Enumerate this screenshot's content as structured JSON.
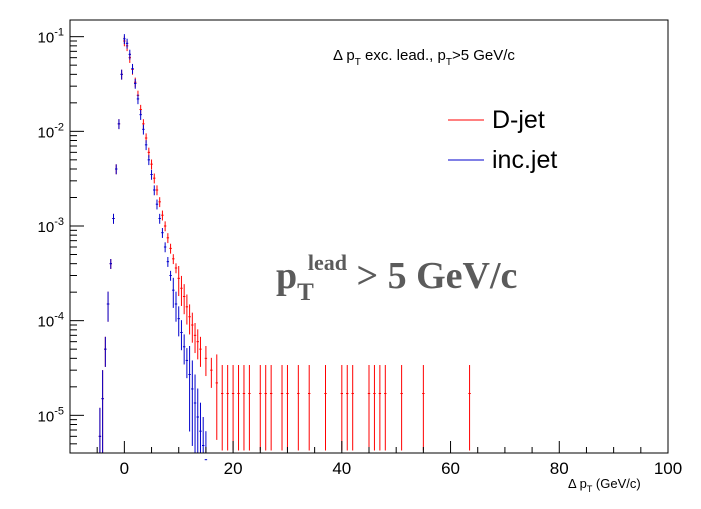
{
  "chart_data": {
    "type": "scatter",
    "title": "",
    "xlabel": "Δ p_T (GeV/c)",
    "ylabel": "",
    "xlim": [
      -10,
      100
    ],
    "ylim": [
      4e-06,
      0.15
    ],
    "yscale": "log",
    "grid": false,
    "legend_placement": "top-right",
    "x_ticks": [
      0,
      20,
      40,
      60,
      80,
      100
    ],
    "x_tick_labels": [
      "0",
      "20",
      "40",
      "60",
      "80",
      "100"
    ],
    "y_ticks": [
      0.1,
      0.01,
      0.001,
      0.0001,
      1e-05
    ],
    "y_tick_labels": [
      {
        "base": "10",
        "exp": "-1"
      },
      {
        "base": "10",
        "exp": "-2"
      },
      {
        "base": "10",
        "exp": "-3"
      },
      {
        "base": "10",
        "exp": "-4"
      },
      {
        "base": "10",
        "exp": "-5"
      }
    ],
    "annotations": {
      "header": {
        "pre": "Δ p",
        "sub": "T",
        "mid": " exc. lead., p",
        "sub2": "T",
        "post": ">5 GeV/c"
      },
      "cut": {
        "p": "p",
        "sub": "T",
        "sup": "lead",
        "rest": " > 5 GeV/c"
      },
      "axis_title": {
        "pre": "Δ p",
        "sub": "T",
        "post": " (GeV/c)"
      }
    },
    "series": [
      {
        "name": "D-jet",
        "color": "#ff0000",
        "points": [
          [
            -4.5,
            6e-06
          ],
          [
            -4.0,
            1.5e-05
          ],
          [
            -3.5,
            5e-05
          ],
          [
            -3.0,
            0.00015
          ],
          [
            -2.5,
            0.0004
          ],
          [
            -2.0,
            0.0012
          ],
          [
            -1.5,
            0.004
          ],
          [
            -1.0,
            0.012
          ],
          [
            -0.5,
            0.04
          ],
          [
            0.0,
            0.09
          ],
          [
            0.5,
            0.08
          ],
          [
            1.0,
            0.06
          ],
          [
            1.5,
            0.045
          ],
          [
            2.0,
            0.033
          ],
          [
            2.5,
            0.024
          ],
          [
            3.0,
            0.017
          ],
          [
            3.5,
            0.012
          ],
          [
            4.0,
            0.0085
          ],
          [
            4.5,
            0.006
          ],
          [
            5.0,
            0.0045
          ],
          [
            5.5,
            0.0032
          ],
          [
            6.0,
            0.0024
          ],
          [
            6.5,
            0.0018
          ],
          [
            7.0,
            0.0013
          ],
          [
            7.5,
            0.001
          ],
          [
            8.0,
            0.00075
          ],
          [
            8.5,
            0.00058
          ],
          [
            9.0,
            0.00045
          ],
          [
            9.5,
            0.00036
          ],
          [
            10.0,
            0.00028
          ],
          [
            10.5,
            0.00022
          ],
          [
            11.0,
            0.00018
          ],
          [
            11.5,
            0.00014
          ],
          [
            12.0,
            0.00011
          ],
          [
            12.5,
            9e-05
          ],
          [
            13.0,
            7e-05
          ],
          [
            13.5,
            6e-05
          ],
          [
            14.0,
            5e-05
          ],
          [
            15.0,
            4e-05
          ],
          [
            16.0,
            3e-05
          ],
          [
            17.0,
            2.2e-05
          ],
          [
            18.0,
            1.7e-05
          ],
          [
            19.0,
            1.7e-05
          ],
          [
            20.0,
            1.7e-05
          ],
          [
            21.0,
            1.7e-05
          ],
          [
            22.0,
            1.7e-05
          ],
          [
            23.0,
            1.7e-05
          ],
          [
            25.0,
            1.7e-05
          ],
          [
            26.0,
            1.7e-05
          ],
          [
            27.0,
            1.7e-05
          ],
          [
            29.0,
            1.7e-05
          ],
          [
            30.0,
            1.7e-05
          ],
          [
            32.0,
            1.7e-05
          ],
          [
            34.0,
            1.7e-05
          ],
          [
            37.0,
            1.7e-05
          ],
          [
            40.0,
            1.7e-05
          ],
          [
            41.0,
            1.7e-05
          ],
          [
            42.0,
            1.7e-05
          ],
          [
            45.0,
            1.7e-05
          ],
          [
            46.0,
            1.7e-05
          ],
          [
            47.0,
            1.7e-05
          ],
          [
            48.0,
            1.7e-05
          ],
          [
            51.0,
            1.7e-05
          ],
          [
            55.0,
            1.7e-05
          ],
          [
            63.5,
            1.7e-05
          ]
        ]
      },
      {
        "name": "inc.jet",
        "color": "#0000cc",
        "points": [
          [
            -4.5,
            6e-06
          ],
          [
            -4.0,
            1.5e-05
          ],
          [
            -3.5,
            5e-05
          ],
          [
            -3.0,
            0.00015
          ],
          [
            -2.5,
            0.0004
          ],
          [
            -2.0,
            0.0012
          ],
          [
            -1.5,
            0.004
          ],
          [
            -1.0,
            0.012
          ],
          [
            -0.5,
            0.04
          ],
          [
            0.0,
            0.095
          ],
          [
            0.5,
            0.085
          ],
          [
            1.0,
            0.065
          ],
          [
            1.5,
            0.046
          ],
          [
            2.0,
            0.032
          ],
          [
            2.5,
            0.022
          ],
          [
            3.0,
            0.015
          ],
          [
            3.5,
            0.0105
          ],
          [
            4.0,
            0.0072
          ],
          [
            4.5,
            0.005
          ],
          [
            5.0,
            0.0035
          ],
          [
            5.5,
            0.0024
          ],
          [
            6.0,
            0.0017
          ],
          [
            6.5,
            0.0012
          ],
          [
            7.0,
            0.00085
          ],
          [
            7.5,
            0.0006
          ],
          [
            8.0,
            0.00042
          ],
          [
            8.5,
            0.0003
          ],
          [
            9.0,
            0.00021
          ],
          [
            9.5,
            0.00015
          ],
          [
            10.0,
            0.000105
          ],
          [
            10.5,
            7.5e-05
          ],
          [
            11.0,
            5.3e-05
          ],
          [
            11.5,
            3.8e-05
          ],
          [
            12.0,
            2.7e-05
          ],
          [
            12.5,
            1.9e-05
          ],
          [
            13.0,
            1.35e-05
          ],
          [
            13.5,
            9.6e-06
          ],
          [
            14.0,
            6.8e-06
          ],
          [
            14.5,
            4.8e-06
          ],
          [
            15.0,
            3.4e-06
          ]
        ]
      }
    ]
  }
}
